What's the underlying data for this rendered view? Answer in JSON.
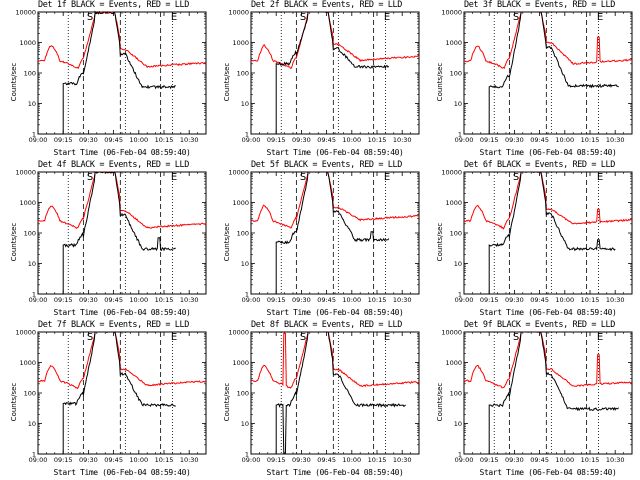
{
  "chart_data": {
    "type": "line",
    "layout": "3x3 grid",
    "ylabel": "Counts/sec",
    "xlabel": "Start Time (06-Feb-04 08:59:40)",
    "x_tick_labels": [
      "09:00",
      "09:15",
      "09:30",
      "09:45",
      "10:00",
      "10:15",
      "10:30"
    ],
    "y_tick_labels": [
      "1",
      "10",
      "100",
      "1000",
      "10000"
    ],
    "y_scale": "log",
    "ylim": [
      1,
      10000
    ],
    "xlim_minutes": [
      0,
      100
    ],
    "series_colors": {
      "Events": "#000000",
      "LLD": "#ff0000"
    },
    "panels": [
      {
        "title": "Det 1f BLACK = Events, RED = LLD",
        "dotted": [
          18,
          52,
          80
        ],
        "dashed": [
          27,
          49,
          73
        ],
        "markers": [
          {
            "label": "S",
            "x": 31
          },
          {
            "label": "E",
            "x": 81
          }
        ],
        "black_start": 16,
        "black_end": 82,
        "black_base": 45,
        "black_peak_end": 35,
        "black_spikes": [
          [
            15,
            3
          ]
        ],
        "red_peak": 8000,
        "red_end": 160,
        "red_shoulder": 600,
        "red_spikes": []
      },
      {
        "title": "Det 2f BLACK = Events, RED = LLD",
        "dotted": [
          18,
          52,
          80
        ],
        "dashed": [
          27,
          49,
          73
        ],
        "markers": [
          {
            "label": "S",
            "x": 31
          },
          {
            "label": "E",
            "x": 81
          }
        ],
        "black_start": 16,
        "black_end": 82,
        "black_base": 200,
        "black_peak_end": 160,
        "black_spikes": [
          [
            15,
            18
          ]
        ],
        "red_peak": 9000,
        "red_end": 260,
        "red_shoulder": 900,
        "red_spikes": []
      },
      {
        "title": "Det 3f BLACK = Events, RED = LLD",
        "dotted": [
          18,
          52,
          80
        ],
        "dashed": [
          27,
          49,
          73
        ],
        "markers": [
          {
            "label": "S",
            "x": 31
          },
          {
            "label": "E",
            "x": 81
          }
        ],
        "black_start": 16,
        "black_end": 92,
        "black_base": 35,
        "black_peak_end": 38,
        "black_spikes": [
          [
            15,
            3
          ]
        ],
        "red_peak": 9500,
        "red_end": 200,
        "red_shoulder": 1000,
        "red_spikes": [
          [
            80,
            1500
          ]
        ]
      },
      {
        "title": "Det 4f BLACK = Events, RED = LLD",
        "dotted": [
          18,
          52,
          80
        ],
        "dashed": [
          27,
          49,
          73
        ],
        "markers": [
          {
            "label": "S",
            "x": 31
          },
          {
            "label": "E",
            "x": 81
          }
        ],
        "black_start": 16,
        "black_end": 82,
        "black_base": 40,
        "black_peak_end": 30,
        "black_spikes": [
          [
            15,
            3
          ],
          [
            72,
            70
          ]
        ],
        "red_peak": 8500,
        "red_end": 150,
        "red_shoulder": 550,
        "red_spikes": []
      },
      {
        "title": "Det 5f BLACK = Events, RED = LLD",
        "dotted": [
          18,
          52,
          80
        ],
        "dashed": [
          27,
          49,
          73
        ],
        "markers": [
          {
            "label": "S",
            "x": 31
          },
          {
            "label": "E",
            "x": 81
          }
        ],
        "black_start": 16,
        "black_end": 82,
        "black_base": 50,
        "black_peak_end": 60,
        "black_spikes": [
          [
            15,
            3
          ],
          [
            72,
            110
          ]
        ],
        "red_peak": 9000,
        "red_end": 270,
        "red_shoulder": 700,
        "red_spikes": []
      },
      {
        "title": "Det 6f BLACK = Events, RED = LLD",
        "dotted": [
          18,
          52,
          80
        ],
        "dashed": [
          27,
          49,
          73
        ],
        "markers": [
          {
            "label": "S",
            "x": 31
          },
          {
            "label": "E",
            "x": 81
          }
        ],
        "black_start": 16,
        "black_end": 90,
        "black_base": 40,
        "black_peak_end": 30,
        "black_spikes": [
          [
            15,
            3
          ],
          [
            80,
            60
          ]
        ],
        "red_peak": 9000,
        "red_end": 200,
        "red_shoulder": 600,
        "red_spikes": [
          [
            80,
            600
          ]
        ]
      },
      {
        "title": "Det 7f BLACK = Events, RED = LLD",
        "dotted": [
          18,
          52,
          80
        ],
        "dashed": [
          27,
          49,
          73
        ],
        "markers": [
          {
            "label": "S",
            "x": 31
          },
          {
            "label": "E",
            "x": 81
          }
        ],
        "black_start": 16,
        "black_end": 82,
        "black_base": 45,
        "black_peak_end": 40,
        "black_spikes": [
          [
            15,
            3
          ]
        ],
        "red_peak": 9000,
        "red_end": 180,
        "red_shoulder": 600,
        "red_spikes": []
      },
      {
        "title": "Det 8f BLACK = Events, RED = LLD",
        "dotted": [
          18,
          52,
          80
        ],
        "dashed": [
          27,
          49,
          73
        ],
        "markers": [
          {
            "label": "S",
            "x": 31
          },
          {
            "label": "E",
            "x": 81
          }
        ],
        "black_start": 16,
        "black_end": 92,
        "black_base": 40,
        "black_peak_end": 40,
        "black_spikes": [
          [
            15,
            3
          ],
          [
            20,
            1
          ]
        ],
        "red_peak": 10000,
        "red_end": 170,
        "red_shoulder": 600,
        "red_spikes": [
          [
            20,
            9000
          ]
        ]
      },
      {
        "title": "Det 9f BLACK = Events, RED = LLD",
        "dotted": [
          18,
          52,
          80
        ],
        "dashed": [
          27,
          49,
          73
        ],
        "markers": [
          {
            "label": "S",
            "x": 31
          },
          {
            "label": "E",
            "x": 81
          }
        ],
        "black_start": 16,
        "black_end": 92,
        "black_base": 40,
        "black_peak_end": 30,
        "black_spikes": [
          [
            15,
            3
          ]
        ],
        "red_peak": 9000,
        "red_end": 170,
        "red_shoulder": 600,
        "red_spikes": [
          [
            80,
            1800
          ]
        ]
      }
    ]
  }
}
